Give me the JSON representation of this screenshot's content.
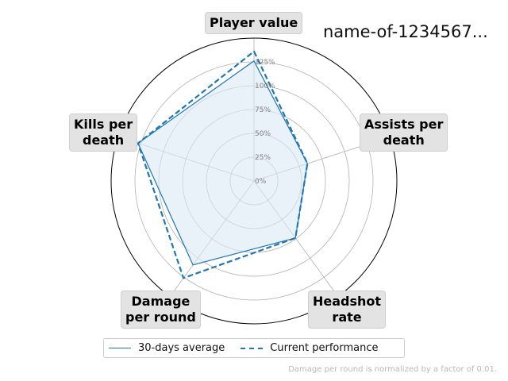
{
  "chart_data": {
    "type": "radar",
    "title": "name-of-1234567...",
    "axes": [
      "Player value",
      "Assists per\ndeath",
      "Headshot\nrate",
      "Damage\nper round",
      "Kills per\ndeath"
    ],
    "radial_ticks": [
      "0%",
      "25%",
      "50%",
      "75%",
      "100%",
      "125%"
    ],
    "radial_range": [
      0,
      150
    ],
    "series": [
      {
        "name": "30-days average",
        "style": "solid",
        "fill": true,
        "values": [
          126,
          59,
          74,
          109,
          128
        ]
      },
      {
        "name": "Current performance",
        "style": "dashed",
        "fill": false,
        "values": [
          136,
          59,
          74,
          126,
          128
        ]
      }
    ],
    "legend": "bottom-center",
    "footnote": "Damage per round is normalized by a factor of 0.01.",
    "colors": {
      "line": "#1f77b4",
      "fill": "#dbe8f5",
      "grid": "#b0b0b0",
      "tick_label": "#808080",
      "label_box": "#e3e3e3"
    }
  }
}
